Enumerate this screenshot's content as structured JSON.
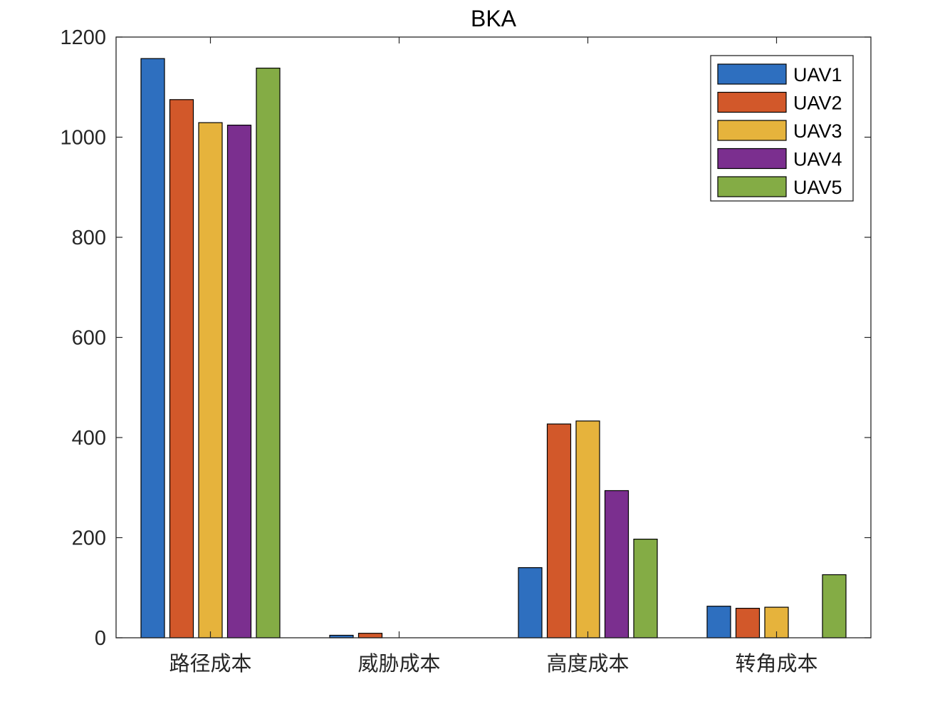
{
  "chart_data": {
    "type": "bar",
    "title": "BKA",
    "xlabel": "",
    "ylabel": "",
    "categories": [
      "路径成本",
      "威胁成本",
      "高度成本",
      "转角成本"
    ],
    "ylim": [
      0,
      1200
    ],
    "yticks": [
      0,
      200,
      400,
      600,
      800,
      1000,
      1200
    ],
    "legend_position": "top-right",
    "grid": false,
    "series": [
      {
        "name": "UAV1",
        "color": "#2E6FBF",
        "values": [
          1157,
          5,
          140,
          63
        ]
      },
      {
        "name": "UAV2",
        "color": "#D2582A",
        "values": [
          1075,
          9,
          427,
          59
        ]
      },
      {
        "name": "UAV3",
        "color": "#E6B33C",
        "values": [
          1029,
          0,
          433,
          61
        ]
      },
      {
        "name": "UAV4",
        "color": "#7B2F8F",
        "values": [
          1024,
          0,
          294,
          0
        ]
      },
      {
        "name": "UAV5",
        "color": "#84AC45",
        "values": [
          1138,
          0,
          197,
          126
        ]
      }
    ]
  }
}
